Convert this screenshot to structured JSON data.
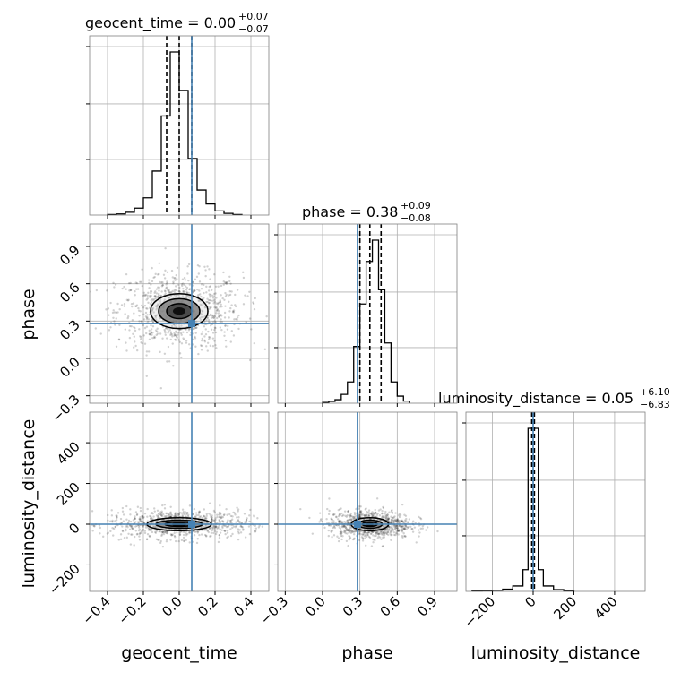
{
  "chart_data": {
    "type": "corner",
    "parameters": [
      "geocent_time",
      "phase",
      "luminosity_distance"
    ],
    "truths": {
      "geocent_time": 0.07,
      "phase": 0.28,
      "luminosity_distance": 0.05
    },
    "ranges": {
      "geocent_time": [
        -0.5,
        0.5
      ],
      "phase": [
        -0.36,
        1.08
      ],
      "luminosity_distance": [
        -330,
        550
      ]
    },
    "titles": [
      {
        "param": "geocent_time",
        "label": "geocent_time = 0.00",
        "plus": "+0.07",
        "minus": "−0.07"
      },
      {
        "param": "phase",
        "label": "phase = 0.38",
        "plus": "+0.09",
        "minus": "−0.08"
      },
      {
        "param": "luminosity_distance",
        "label": "luminosity_distance = 0.05",
        "plus": "+6.10",
        "minus": "−6.83"
      }
    ],
    "quantiles": {
      "geocent_time": [
        -0.07,
        0.0,
        0.07
      ],
      "phase": [
        0.3,
        0.38,
        0.47
      ],
      "luminosity_distance": [
        -6.78,
        0.05,
        6.15
      ]
    },
    "ticks": {
      "geocent_time": [
        "−0.4",
        "−0.2",
        "0.0",
        "0.2",
        "0.4"
      ],
      "phase": [
        "−0.3",
        "0.0",
        "0.3",
        "0.6",
        "0.9"
      ],
      "luminosity_distance": [
        "−200",
        "0",
        "200",
        "400"
      ]
    },
    "tick_values": {
      "geocent_time": [
        -0.4,
        -0.2,
        0.0,
        0.2,
        0.4
      ],
      "phase": [
        -0.3,
        0.0,
        0.3,
        0.6,
        0.9
      ],
      "luminosity_distance": [
        -200,
        0,
        200,
        400
      ]
    },
    "histograms": {
      "geocent_time": {
        "edges": [
          -0.4,
          -0.35,
          -0.3,
          -0.25,
          -0.2,
          -0.15,
          -0.1,
          -0.05,
          0.0,
          0.05,
          0.1,
          0.15,
          0.2,
          0.25,
          0.3,
          0.35
        ],
        "counts": [
          0.2,
          0.4,
          1.0,
          2.5,
          6.2,
          15.8,
          35.6,
          58.6,
          44.8,
          20.3,
          9.0,
          4.0,
          1.5,
          0.6,
          0.2
        ]
      },
      "phase": {
        "edges": [
          0.0,
          0.05,
          0.1,
          0.15,
          0.2,
          0.25,
          0.3,
          0.35,
          0.4,
          0.45,
          0.5,
          0.55,
          0.6,
          0.65,
          0.7
        ],
        "counts": [
          0.2,
          0.5,
          1.0,
          2.5,
          6.0,
          16.0,
          28.0,
          40.0,
          46.0,
          32.0,
          17.0,
          6.0,
          2.0,
          0.6
        ]
      },
      "luminosity_distance": {
        "edges": [
          -300,
          -250,
          -200,
          -150,
          -100,
          -50,
          -25,
          0,
          25,
          50,
          100,
          150,
          200
        ],
        "counts": [
          0.1,
          0.2,
          0.3,
          0.6,
          1.5,
          6.0,
          45.0,
          45.0,
          6.0,
          1.5,
          0.5,
          0.1
        ]
      }
    },
    "contours": {
      "phase_vs_geocent_time": {
        "center": [
          0.0,
          0.38
        ],
        "widths_x": [
          0.035,
          0.07,
          0.115,
          0.16
        ],
        "widths_y": [
          0.03,
          0.06,
          0.1,
          0.14
        ]
      },
      "luminosity_distance_vs_geocent_time": {
        "center": [
          0.0,
          0.0
        ],
        "widths_x": [
          0.04,
          0.08,
          0.13,
          0.18
        ],
        "widths_y": [
          5,
          10,
          20,
          32
        ]
      },
      "luminosity_distance_vs_phase": {
        "center": [
          0.38,
          0.0
        ],
        "widths_x": [
          0.03,
          0.06,
          0.1,
          0.15
        ],
        "widths_y": [
          5,
          10,
          20,
          32
        ]
      }
    },
    "colors": {
      "truth": "#4682b4",
      "hist": "#000000",
      "grid": "#b0b0b0",
      "points": "#000000"
    },
    "grid": true
  }
}
